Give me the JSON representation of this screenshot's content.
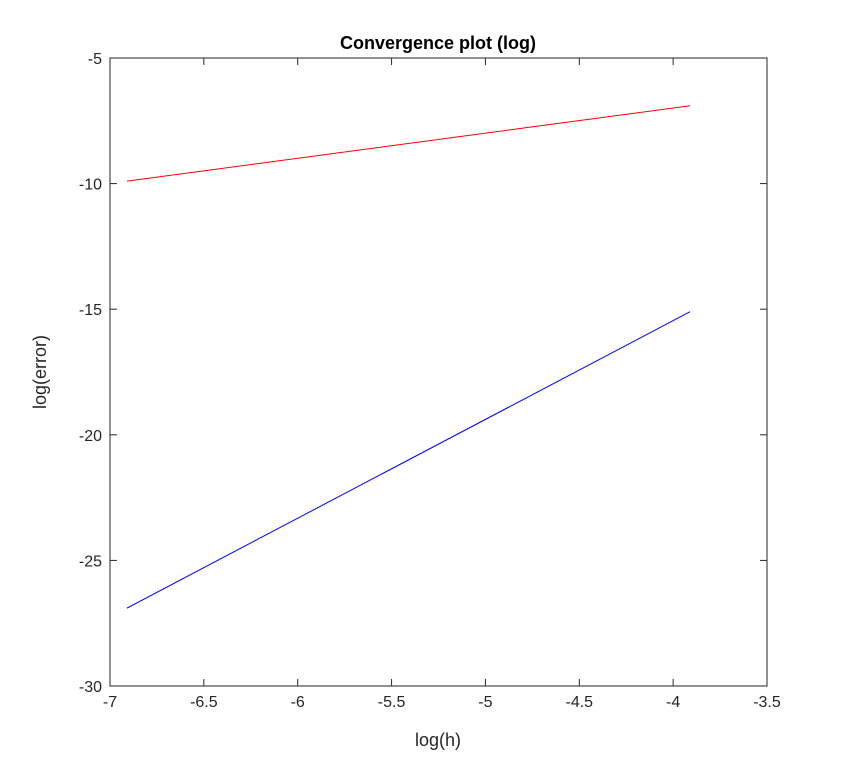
{
  "chart_data": {
    "type": "line",
    "title": "Convergence plot (log)",
    "xlabel": "log(h)",
    "ylabel": "log(error)",
    "xlim": [
      -7,
      -3.5
    ],
    "ylim": [
      -30,
      -5
    ],
    "xticks": [
      -7,
      -6.5,
      -6,
      -5.5,
      -5,
      -4.5,
      -4,
      -3.5
    ],
    "yticks": [
      -30,
      -25,
      -20,
      -15,
      -10,
      -5
    ],
    "xtick_labels": [
      "-7",
      "-6.5",
      "-6",
      "-5.5",
      "-5",
      "-4.5",
      "-4",
      "-3.5"
    ],
    "ytick_labels": [
      "-30",
      "-25",
      "-20",
      "-15",
      "-10",
      "-5"
    ],
    "grid": false,
    "series": [
      {
        "color": "#ff0000",
        "x": [
          -6.91,
          -3.91
        ],
        "y": [
          -9.9,
          -6.9
        ]
      },
      {
        "color": "#0000ff",
        "x": [
          -6.91,
          -3.91
        ],
        "y": [
          -26.9,
          -15.1
        ]
      }
    ]
  }
}
